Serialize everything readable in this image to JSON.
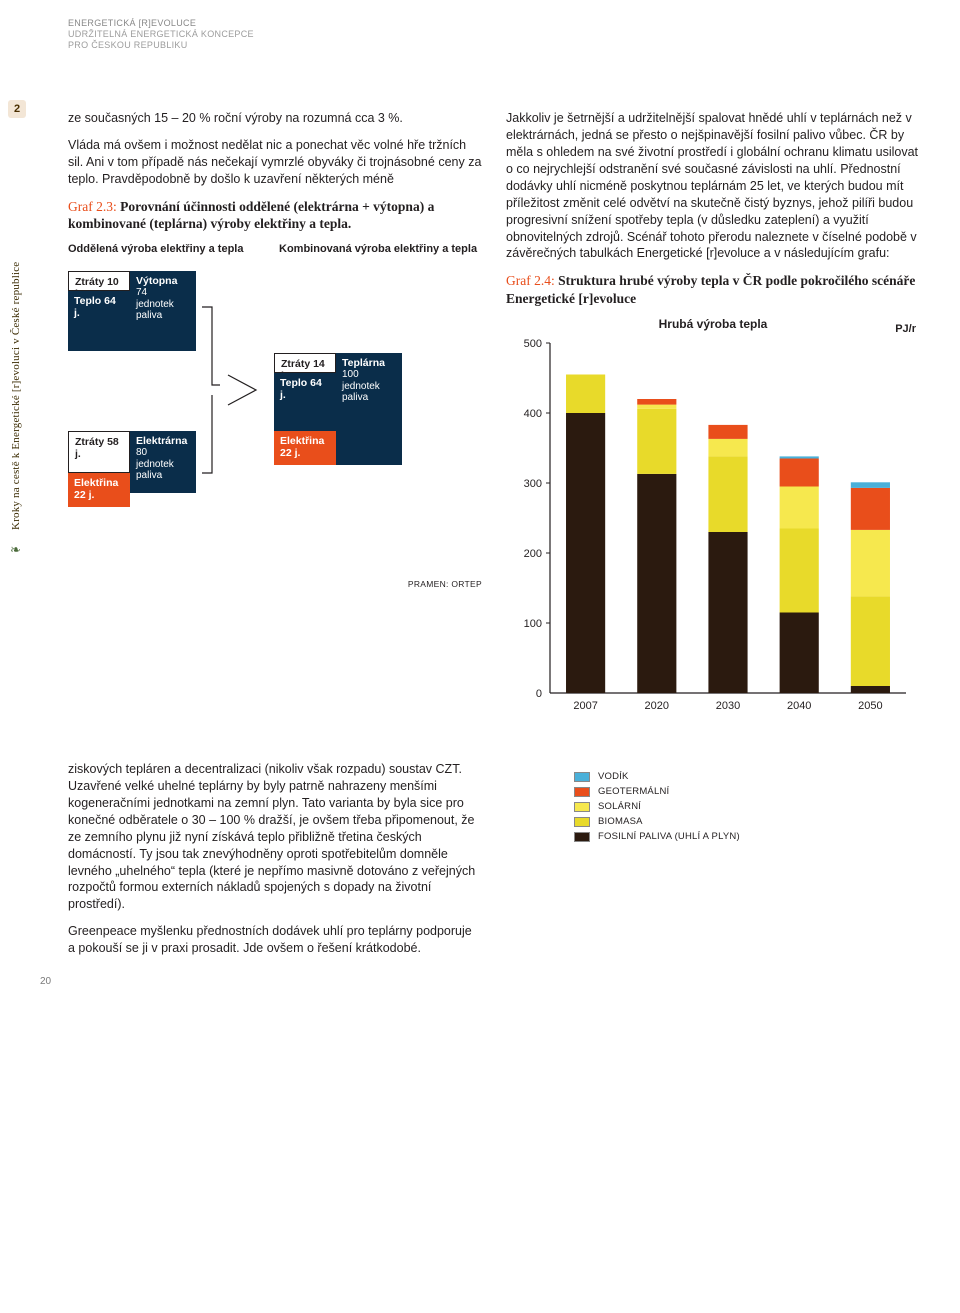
{
  "header": {
    "line1": "ENERGETICKÁ [R]EVOLUCE",
    "line2": "UDRŽITELNÁ ENERGETICKÁ KONCEPCE",
    "line3": "PRO ČESKOU REPUBLIKU"
  },
  "page_tab": "2",
  "side_text": "Kroky na cestě k Energetické [r]evoluci v České republice",
  "pagenum": "20",
  "col_left": {
    "p1": "ze současných 15 – 20 % roční výroby na rozumná cca 3 %.",
    "p2": "Vláda má ovšem i možnost nedělat nic a ponechat věc volné hře tržních sil. Ani v tom případě nás nečekají vymrzlé obyváky či trojnásobné ceny za teplo. Pravděpodobně by došlo k uzavření některých méně",
    "fig23_ref": "Graf 2.3:",
    "fig23_title": " Porovnání účinnosti oddělené (elektrárna + výtopna) a kombinované (teplárna) výroby elektřiny a tepla.",
    "sep_label": "Oddělená výroba elektřiny a tepla",
    "comb_label": "Kombinovaná výroba elektřiny a tepla",
    "boxes": {
      "ztraty10": "Ztráty 10 j.",
      "teplo64a": "Teplo 64 j.",
      "vytopna_title": "Výtopna",
      "vytopna_sub": "74\njednotek\npaliva",
      "ztraty58": "Ztráty 58 j.",
      "elektrarna_title": "Elektrárna",
      "elektrarna_sub": "80\njednotek\npaliva",
      "elektrina22a": "Elektřina\n22 j.",
      "ztraty14": "Ztráty 14 j.",
      "teplo64b": "Teplo 64 j.",
      "teplarna_title": "Teplárna",
      "teplarna_sub": "100\njednotek\npaliva",
      "elektrina22b": "Elektřina\n22 j."
    },
    "source23": "PRAMEN: ORTEP"
  },
  "col_right": {
    "p1": "Jakkoliv je šetrnější a udržitelnější spalovat hnědé uhlí v teplárnách než v elektrárnách, jedná se přesto o nejšpinavější fosilní palivo vůbec. ČR by měla s ohledem na své životní prostředí i globální ochranu klimatu usilovat o co nejrychlejší odstranění své současné závislosti na uhlí. Přednostní dodávky uhlí nicméně poskytnou teplárnám 25 let, ve kterých budou mít příležitost změnit celé odvětví na skutečně čistý byznys, jehož pilíři budou progresivní snížení spotřeby tepla (v důsledku zateplení) a využití obnovitelných zdrojů. Scénář tohoto přerodu naleznete v číselné podobě v závěrečných tabulkách Energetické [r]evoluce a v následujícím grafu:",
    "fig24_ref": "Graf 2.4:",
    "fig24_title": " Struktura hrubé výroby tepla v ČR podle pokročilého scénáře Energetické [r]evoluce",
    "chart": {
      "title": "Hrubá výroba tepla",
      "unit": "PJ/r",
      "categories": [
        "2007",
        "2020",
        "2030",
        "2040",
        "2050"
      ],
      "y_max": 500,
      "y_ticks": [
        0,
        100,
        200,
        300,
        400,
        500
      ],
      "series": [
        {
          "key": "fosilni",
          "color": "#2b1a0f",
          "values": [
            400,
            313,
            230,
            115,
            10
          ]
        },
        {
          "key": "biomasa",
          "color": "#e8da2a",
          "values": [
            55,
            93,
            108,
            120,
            128
          ]
        },
        {
          "key": "solarni",
          "color": "#f6e84e",
          "values": [
            0,
            6,
            25,
            60,
            95
          ]
        },
        {
          "key": "geoterm",
          "color": "#e94e1b",
          "values": [
            0,
            8,
            20,
            40,
            60
          ]
        },
        {
          "key": "vodik",
          "color": "#4ab0d9",
          "values": [
            0,
            0,
            0,
            3,
            8
          ]
        }
      ],
      "legend": [
        {
          "label": "VODÍK",
          "color": "#4ab0d9"
        },
        {
          "label": "GEOTERMÁLNÍ",
          "color": "#e94e1b"
        },
        {
          "label": "SOLÁRNÍ",
          "color": "#f6e84e"
        },
        {
          "label": "BIOMASA",
          "color": "#e8da2a"
        },
        {
          "label": "FOSILNÍ PALIVA (UHLÍ A PLYN)",
          "color": "#2b1a0f"
        }
      ],
      "bar_width": 0.55,
      "grid_color": "#cfcfcf",
      "axis_color": "#231f20",
      "background": "#ffffff"
    }
  },
  "lower_left": {
    "p1": "ziskových tepláren a decentralizaci (nikoliv však rozpadu) soustav CZT. Uzavřené velké uhelné teplárny by byly patrně nahrazeny menšími kogeneračními jednotkami na zemní plyn. Tato varianta by byla sice pro konečné odběratele o 30 – 100 % dražší, je ovšem třeba připomenout, že ze zemního plynu již nyní získává teplo přibližně třetina českých domácností. Ty jsou tak znevýhodněny oproti spotřebitelům domněle levného „uhelného“ tepla (které je nepřímo masivně dotováno z veřejných rozpočtů formou externích nákladů spojených s dopady na životní prostředí).",
    "p2": "Greenpeace myšlenku přednostních dodávek uhlí pro teplárny podporuje a pokouší se ji v praxi prosadit. Jde ovšem o řešení krátkodobé."
  },
  "colors": {
    "navy": "#0a2d4a",
    "orange": "#e94e1b",
    "text": "#231f20",
    "white": "#ffffff"
  }
}
